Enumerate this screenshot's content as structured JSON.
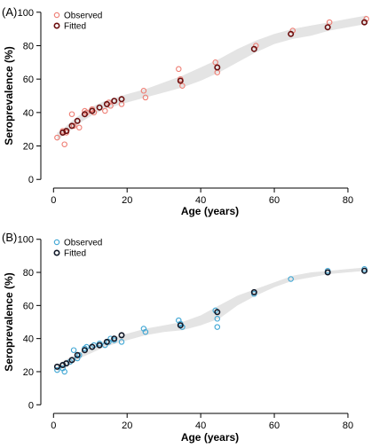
{
  "chart_data": [
    {
      "type": "scatter",
      "panel_label": "(A)",
      "xlabel": "Age (years)",
      "ylabel": "Seroprevalence (%)",
      "xlim": [
        -2,
        87
      ],
      "ylim": [
        -2,
        102
      ],
      "xticks": [
        0,
        20,
        40,
        60,
        80
      ],
      "yticks": [
        0,
        20,
        40,
        60,
        80,
        100
      ],
      "legend_position": "top-left",
      "band": {
        "x": [
          1,
          3,
          5,
          8,
          11,
          14,
          17,
          20,
          25,
          30,
          35,
          40,
          45,
          50,
          55,
          60,
          65,
          70,
          75,
          80,
          85
        ],
        "lower": [
          23,
          27,
          30,
          35,
          39,
          42,
          44,
          46,
          49,
          52,
          55,
          59,
          64,
          70,
          76,
          81,
          84,
          86,
          89,
          91,
          93
        ],
        "upper": [
          28,
          31,
          35,
          40,
          44,
          47,
          49,
          51,
          54,
          58,
          62,
          67,
          72,
          78,
          83,
          87,
          90,
          92,
          94,
          96,
          98
        ]
      },
      "series": [
        {
          "name": "Observed",
          "color": "#ee7d73",
          "x": [
            1,
            2.5,
            3,
            3.5,
            5,
            5.5,
            7,
            8.5,
            9,
            10.5,
            11,
            12.5,
            14,
            15,
            15.5,
            16.5,
            18.5,
            24.5,
            25,
            34,
            34.5,
            35,
            44,
            44.5,
            55,
            65,
            75,
            85
          ],
          "y": [
            25,
            29,
            21,
            28,
            39,
            32,
            31,
            41,
            40,
            42,
            40,
            43,
            41,
            46,
            44,
            47,
            45,
            53,
            49,
            66,
            60,
            56,
            70,
            64,
            80,
            89,
            94,
            96
          ]
        },
        {
          "name": "Fitted",
          "color": "#6b0d0d",
          "x": [
            2.5,
            3.5,
            5,
            6.5,
            8.5,
            10.5,
            12.5,
            14.5,
            16.5,
            18.5,
            34.5,
            44.5,
            54.5,
            64.5,
            74.5,
            84.5
          ],
          "y": [
            28,
            29,
            32,
            35,
            39,
            41,
            43,
            45,
            47,
            48,
            59,
            67,
            78,
            87,
            91,
            94
          ]
        }
      ]
    },
    {
      "type": "scatter",
      "panel_label": "(B)",
      "xlabel": "Age (years)",
      "ylabel": "Seroprevalence (%)",
      "xlim": [
        -2,
        87
      ],
      "ylim": [
        -2,
        102
      ],
      "xticks": [
        0,
        20,
        40,
        60,
        80
      ],
      "yticks": [
        0,
        20,
        40,
        60,
        80,
        100
      ],
      "legend_position": "top-left",
      "band": {
        "x": [
          1,
          3,
          5,
          8,
          11,
          14,
          17,
          20,
          25,
          30,
          35,
          40,
          45,
          50,
          55,
          60,
          65,
          70,
          75,
          80,
          85
        ],
        "lower": [
          20,
          23,
          25,
          29,
          32,
          35,
          37,
          39,
          42,
          44,
          45,
          48,
          52,
          60,
          66,
          71,
          75,
          77,
          79,
          80,
          81
        ],
        "upper": [
          24,
          27,
          29,
          33,
          36,
          39,
          41,
          43,
          46,
          48,
          50,
          54,
          60,
          66,
          70,
          74,
          78,
          80,
          81,
          82,
          83
        ]
      },
      "series": [
        {
          "name": "Observed",
          "color": "#3fa6d4",
          "x": [
            1,
            2.5,
            3,
            4.5,
            5.5,
            6.5,
            7,
            8.5,
            9,
            10.5,
            11,
            12.5,
            14,
            15,
            15.5,
            16.5,
            18.5,
            24.5,
            25,
            34,
            34.5,
            35,
            44,
            44.5,
            44.5,
            54.5,
            64.5,
            74.5,
            84.5
          ],
          "y": [
            21,
            22,
            20,
            26,
            33,
            28,
            30,
            34,
            35,
            35,
            36,
            37,
            36,
            38,
            40,
            39,
            38,
            46,
            44,
            51,
            49,
            47,
            57,
            52,
            47,
            67,
            76,
            81,
            82
          ]
        },
        {
          "name": "Fitted",
          "color": "#101828",
          "x": [
            1,
            2.5,
            3.5,
            5,
            6.5,
            8.5,
            10.5,
            12.5,
            14.5,
            16.5,
            18.5,
            34.5,
            44.5,
            54.5,
            74.5,
            84.5
          ],
          "y": [
            23,
            24,
            25,
            27,
            30,
            33,
            35,
            36,
            38,
            40,
            42,
            48,
            56,
            68,
            80,
            81
          ]
        }
      ]
    }
  ]
}
